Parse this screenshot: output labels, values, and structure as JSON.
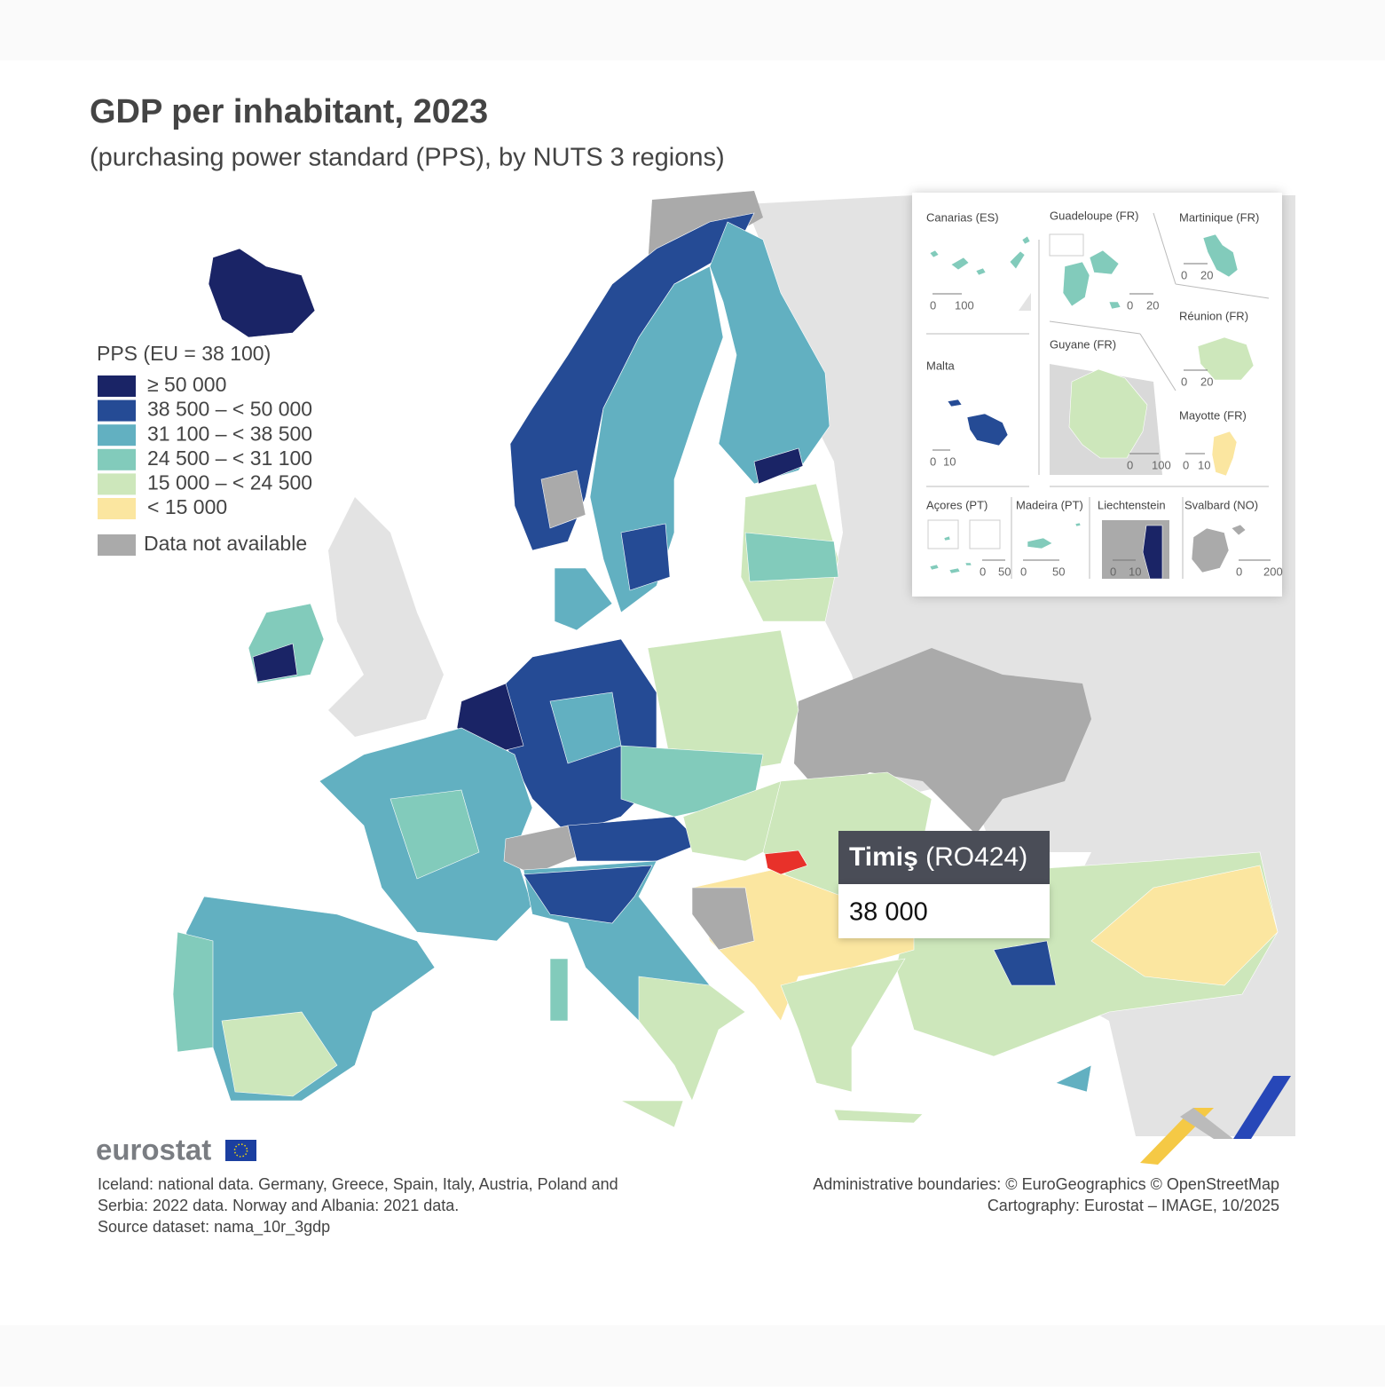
{
  "header": {
    "title": "GDP per inhabitant, 2023",
    "subtitle": "(purchasing power standard (PPS), by NUTS 3 regions)"
  },
  "legend": {
    "title": "PPS (EU = 38 100)",
    "items": [
      {
        "label": "≥ 50 000",
        "color": "#1a2466"
      },
      {
        "label": "38 500 – < 50 000",
        "color": "#254b95"
      },
      {
        "label": "31 100 – < 38 500",
        "color": "#62b0c1"
      },
      {
        "label": "24 500 – < 31 100",
        "color": "#82cbbb"
      },
      {
        "label": "15 000 – < 24 500",
        "color": "#cde7bb"
      },
      {
        "label": "< 15 000",
        "color": "#fbe6a0"
      },
      {
        "label": "Data not available",
        "color": "#aaaaaa"
      }
    ]
  },
  "insets": [
    {
      "label": "Canarias (ES)",
      "scale": [
        0,
        100
      ]
    },
    {
      "label": "Guadeloupe (FR)",
      "scale": [
        0,
        20
      ]
    },
    {
      "label": "Martinique (FR)",
      "scale": [
        0,
        20
      ]
    },
    {
      "label": "Malta",
      "scale": [
        0,
        10
      ]
    },
    {
      "label": "Réunion (FR)",
      "scale": [
        0,
        20
      ]
    },
    {
      "label": "Guyane (FR)",
      "scale": [
        0,
        100
      ]
    },
    {
      "label": "Mayotte (FR)",
      "scale": [
        0,
        10
      ]
    },
    {
      "label": "Açores (PT)",
      "scale": [
        0,
        50
      ]
    },
    {
      "label": "Madeira (PT)",
      "scale": [
        0,
        50
      ]
    },
    {
      "label": "Liechtenstein",
      "scale": [
        0,
        10
      ]
    },
    {
      "label": "Svalbard (NO)",
      "scale": [
        0,
        200
      ]
    }
  ],
  "tooltip": {
    "name": "Timiş",
    "code": "(RO424)",
    "value": "38 000"
  },
  "logo": "eurostat",
  "footer": {
    "notes": [
      "Iceland: national data. Germany, Greece, Spain, Italy, Austria, Poland and",
      "Serbia: 2022 data. Norway and Albania: 2021 data.",
      "Source dataset: nama_10r_3gdp"
    ],
    "credits": [
      "Administrative boundaries: © EuroGeographics © OpenStreetMap",
      "Cartography: Eurostat – IMAGE, 10/2025"
    ]
  }
}
